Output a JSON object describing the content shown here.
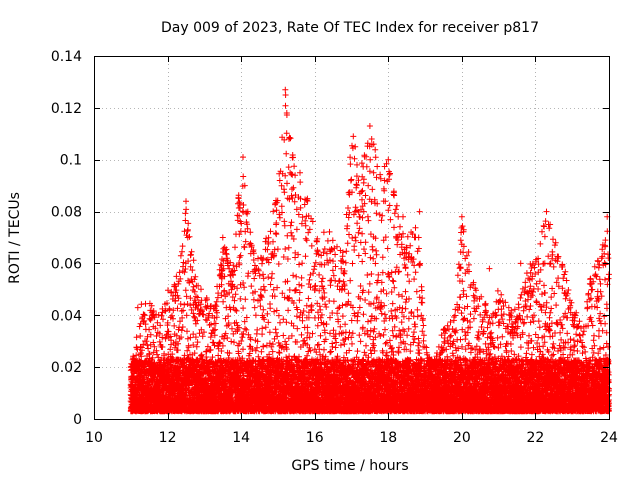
{
  "chart_data": {
    "type": "scatter",
    "title": "Day 009 of 2023, Rate Of TEC Index for receiver p817",
    "xlabel": "GPS time / hours",
    "ylabel": "ROTI / TECUs",
    "xlim": [
      10,
      24
    ],
    "ylim": [
      0,
      0.14
    ],
    "x_ticks": [
      10,
      12,
      14,
      16,
      18,
      20,
      22,
      24
    ],
    "x_tick_labels": [
      "10",
      "12",
      "14",
      "16",
      "18",
      "20",
      "22",
      "24"
    ],
    "y_ticks": [
      0,
      0.02,
      0.04,
      0.06,
      0.08,
      0.1,
      0.12,
      0.14
    ],
    "y_tick_labels": [
      "0",
      "0.02",
      "0.04",
      "0.06",
      "0.08",
      "0.1",
      "0.12",
      "0.14"
    ],
    "grid": true,
    "legend": "none",
    "marker": "plus",
    "color": "#ff0000",
    "data_x_range": [
      11.0,
      24.0
    ],
    "envelope_hours": [
      11.0,
      11.2,
      11.5,
      11.8,
      12.0,
      12.3,
      12.5,
      12.8,
      13.0,
      13.3,
      13.5,
      13.8,
      14.0,
      14.3,
      14.5,
      14.8,
      15.0,
      15.2,
      15.5,
      15.8,
      16.0,
      16.3,
      16.5,
      16.8,
      17.0,
      17.2,
      17.5,
      17.8,
      18.0,
      18.3,
      18.5,
      18.8,
      19.0,
      19.2,
      19.5,
      19.8,
      20.0,
      20.3,
      20.5,
      20.8,
      21.0,
      21.3,
      21.5,
      21.8,
      22.0,
      22.3,
      22.5,
      22.8,
      23.0,
      23.3,
      23.5,
      23.8,
      24.0
    ],
    "envelope_max_roti": [
      0.018,
      0.045,
      0.046,
      0.04,
      0.052,
      0.055,
      0.084,
      0.052,
      0.05,
      0.045,
      0.07,
      0.06,
      0.101,
      0.07,
      0.062,
      0.075,
      0.09,
      0.127,
      0.094,
      0.092,
      0.072,
      0.075,
      0.07,
      0.068,
      0.109,
      0.095,
      0.113,
      0.095,
      0.1,
      0.078,
      0.07,
      0.08,
      0.03,
      0.02,
      0.035,
      0.04,
      0.078,
      0.058,
      0.048,
      0.045,
      0.05,
      0.045,
      0.042,
      0.06,
      0.062,
      0.08,
      0.068,
      0.058,
      0.045,
      0.035,
      0.058,
      0.065,
      0.078
    ],
    "scatter_sample": [
      [
        11.62,
        0.04
      ],
      [
        12.1,
        0.049
      ],
      [
        12.24,
        0.055
      ],
      [
        12.5,
        0.084
      ],
      [
        12.55,
        0.07
      ],
      [
        13.5,
        0.07
      ],
      [
        13.55,
        0.055
      ],
      [
        14.05,
        0.101
      ],
      [
        14.1,
        0.09
      ],
      [
        14.18,
        0.08
      ],
      [
        14.6,
        0.062
      ],
      [
        14.95,
        0.075
      ],
      [
        15.05,
        0.092
      ],
      [
        15.2,
        0.127
      ],
      [
        15.24,
        0.118
      ],
      [
        15.3,
        0.108
      ],
      [
        15.33,
        0.095
      ],
      [
        15.6,
        0.095
      ],
      [
        15.8,
        0.085
      ],
      [
        16.25,
        0.072
      ],
      [
        17.05,
        0.109
      ],
      [
        17.1,
        0.105
      ],
      [
        17.15,
        0.098
      ],
      [
        17.3,
        0.088
      ],
      [
        17.5,
        0.113
      ],
      [
        17.55,
        0.108
      ],
      [
        17.6,
        0.095
      ],
      [
        17.7,
        0.083
      ],
      [
        17.9,
        0.092
      ],
      [
        18.0,
        0.1
      ],
      [
        18.4,
        0.078
      ],
      [
        18.85,
        0.08
      ],
      [
        20.0,
        0.078
      ],
      [
        20.05,
        0.073
      ],
      [
        20.75,
        0.058
      ],
      [
        21.6,
        0.06
      ],
      [
        22.3,
        0.08
      ],
      [
        22.4,
        0.075
      ],
      [
        22.55,
        0.068
      ],
      [
        23.8,
        0.062
      ],
      [
        23.95,
        0.078
      ]
    ]
  }
}
